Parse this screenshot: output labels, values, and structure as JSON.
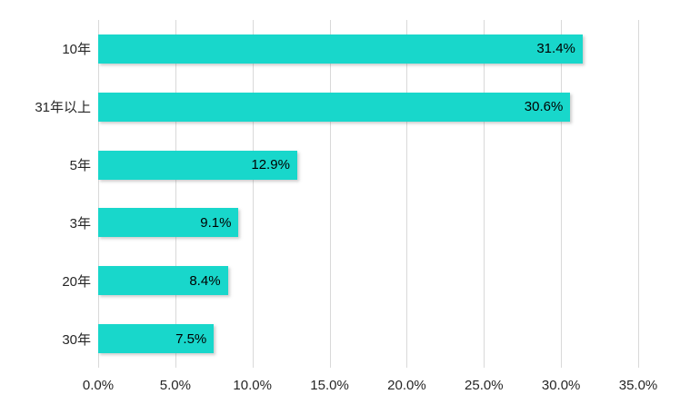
{
  "chart_data": {
    "type": "bar",
    "orientation": "horizontal",
    "title": "",
    "categories": [
      "10年",
      "31年以上",
      "5年",
      "3年",
      "20年",
      "30年"
    ],
    "values": [
      31.4,
      30.6,
      12.9,
      9.1,
      8.4,
      7.5
    ],
    "data_labels": [
      "31.4%",
      "30.6%",
      "12.9%",
      "9.1%",
      "8.4%",
      "7.5%"
    ],
    "x_ticks": [
      "0.0%",
      "5.0%",
      "10.0%",
      "15.0%",
      "20.0%",
      "25.0%",
      "30.0%",
      "35.0%"
    ],
    "x_tick_values": [
      0,
      5,
      10,
      15,
      20,
      25,
      30,
      35
    ],
    "xlim": [
      0,
      35
    ],
    "xlabel": "",
    "ylabel": "",
    "grid": true,
    "legend": false,
    "colors": {
      "bar": "#18D7CB",
      "gridline": "#D9D9D9",
      "axis_text": "#262626",
      "data_label_text": "#000000",
      "background": "#FFFFFF"
    }
  }
}
